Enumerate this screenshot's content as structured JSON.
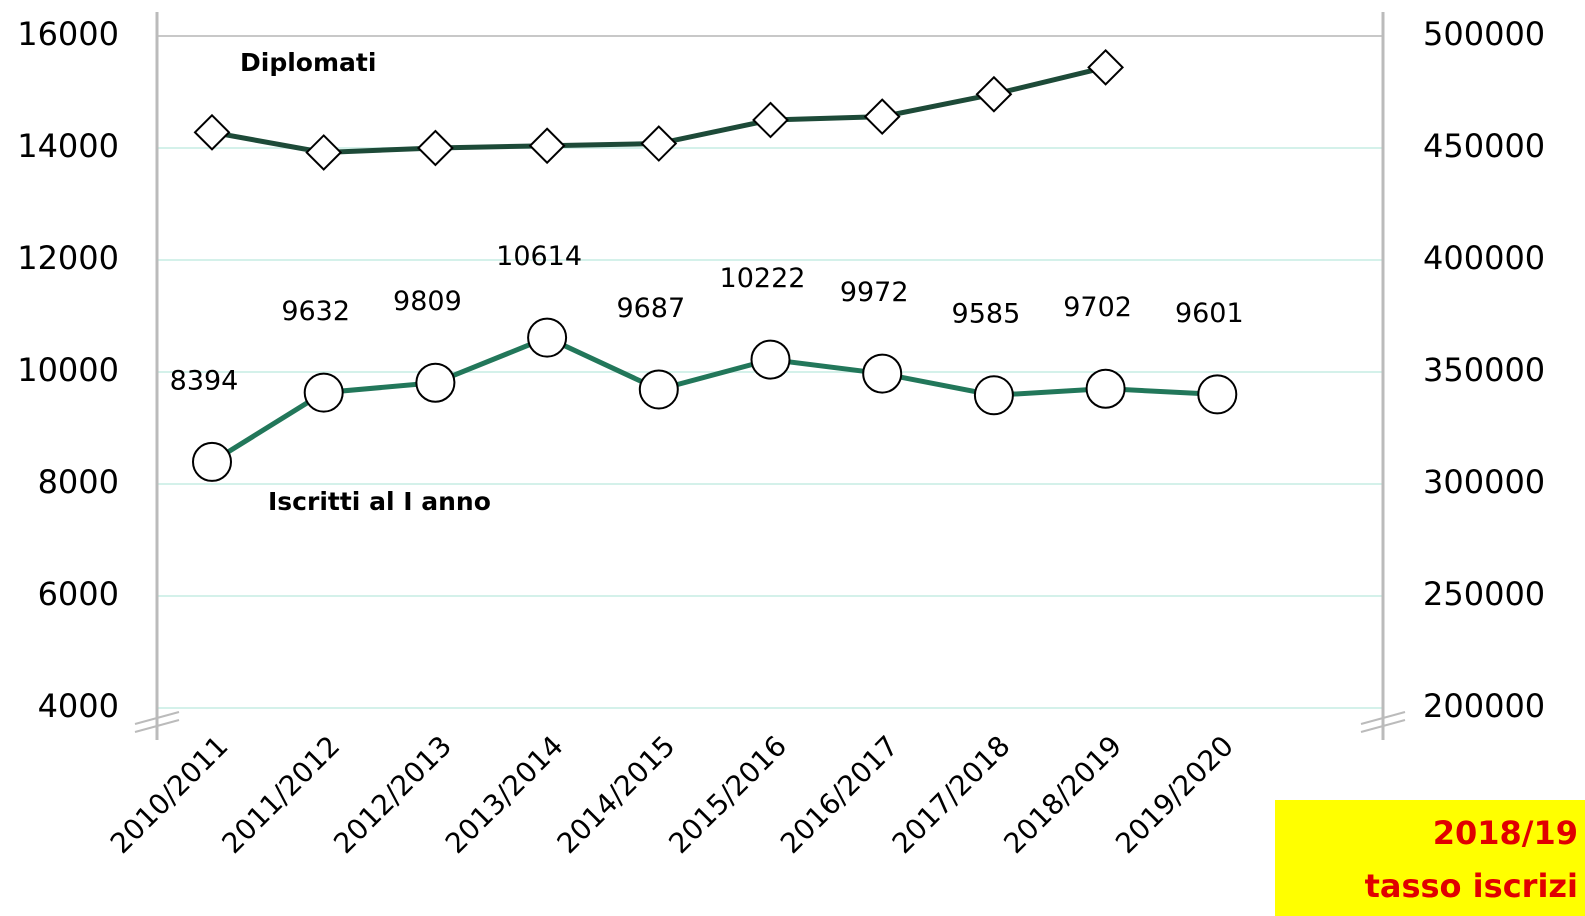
{
  "chart_data": {
    "type": "line",
    "categories": [
      "2010/2011",
      "2011/2012",
      "2012/2013",
      "2013/2014",
      "2014/2015",
      "2015/2016",
      "2016/2017",
      "2017/2018",
      "2018/2019",
      "2019/2020"
    ],
    "series": [
      {
        "name": "Diplomati",
        "color": "#1d4a38",
        "axis": "y2",
        "marker": "diamond",
        "values": [
          457000,
          448000,
          450000,
          451000,
          452000,
          462500,
          464000,
          474000,
          486000,
          null
        ]
      },
      {
        "name": "Iscritti al I anno",
        "color": "#22775a",
        "axis": "y",
        "marker": "circle",
        "values": [
          8394,
          9632,
          9809,
          10614,
          9687,
          10222,
          9972,
          9585,
          9702,
          9601
        ]
      }
    ],
    "ylim": [
      4000,
      16000
    ],
    "yticks": [
      4000,
      6000,
      8000,
      10000,
      12000,
      14000,
      16000
    ],
    "y2lim": [
      200000,
      500000
    ],
    "y2ticks": [
      200000,
      250000,
      300000,
      350000,
      400000,
      450000,
      500000
    ],
    "grid": true,
    "note": [
      "2018/19",
      "tasso iscrizi"
    ]
  }
}
